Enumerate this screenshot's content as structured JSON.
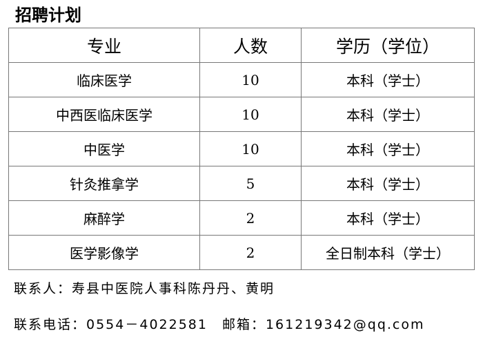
{
  "title": "招聘计划",
  "table": {
    "headers": [
      "专业",
      "人数",
      "学历（学位）"
    ],
    "rows": [
      [
        "临床医学",
        "10",
        "本科（学士）"
      ],
      [
        "中西医临床医学",
        "10",
        "本科（学士）"
      ],
      [
        "中医学",
        "10",
        "本科（学士）"
      ],
      [
        "针灸推拿学",
        "5",
        "本科（学士）"
      ],
      [
        "麻醉学",
        "2",
        "本科（学士）"
      ],
      [
        "医学影像学",
        "2",
        "全日制本科（学士）"
      ]
    ]
  },
  "contact": {
    "person": "联系人：寿县中医院人事科陈丹丹、黄明",
    "phone": "联系电话：0554－4022581　邮箱：161219342@qq.com"
  }
}
